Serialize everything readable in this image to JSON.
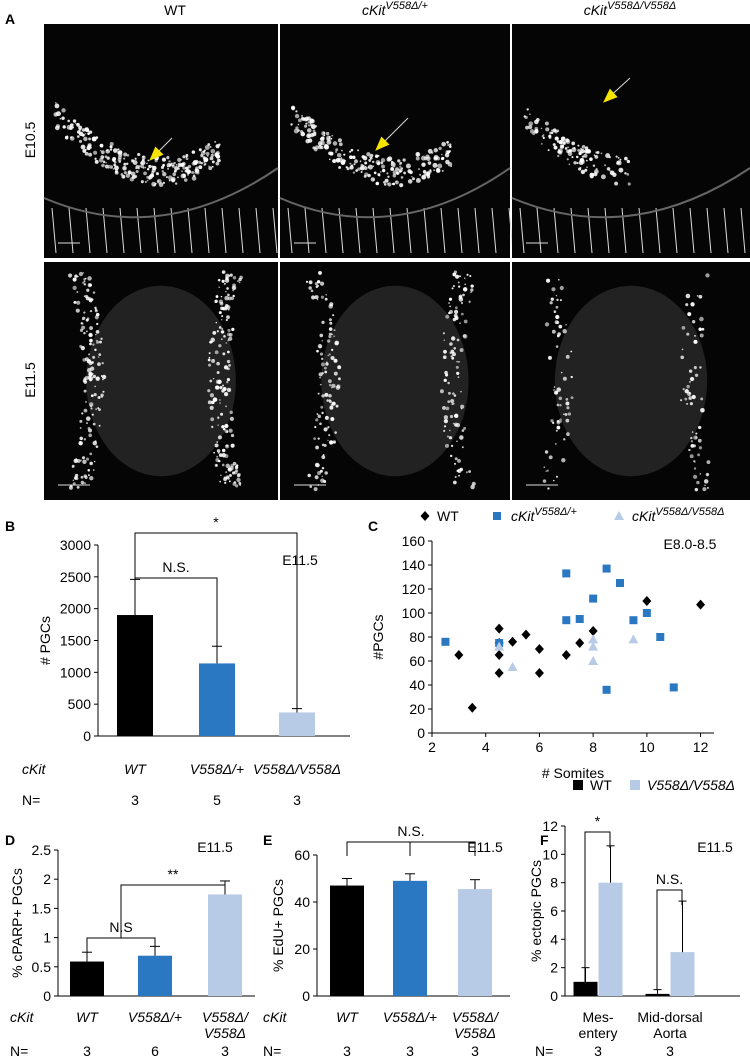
{
  "figure": {
    "panel_a": {
      "label": "A",
      "columns": [
        {
          "text": "WT"
        },
        {
          "text": "cKit",
          "sup": "V558Δ/+"
        },
        {
          "text": "cKit",
          "sup": "V558Δ/V558Δ"
        }
      ],
      "rows": [
        "E10.5",
        "E11.5"
      ]
    }
  },
  "chart_data": [
    {
      "type": "bar",
      "panel": "B",
      "ylabel": "# PGCs",
      "annotation": "E11.5",
      "row_label": "cKit",
      "categories": [
        "WT",
        "V558Δ/+",
        "V558Δ/V558Δ"
      ],
      "values": [
        1900,
        1140,
        370
      ],
      "errors": [
        560,
        270,
        60
      ],
      "colors": [
        "#000000",
        "#2a78c2",
        "#b8cbe6"
      ],
      "ylim": [
        0,
        3000
      ],
      "yticks": [
        0,
        500,
        1000,
        1500,
        2000,
        2500,
        3000
      ],
      "significance": [
        "N.S.",
        "*"
      ],
      "n_label": "N=",
      "n": [
        3,
        5,
        3
      ]
    },
    {
      "type": "scatter",
      "panel": "C",
      "ylabel": "#PGCs",
      "xlabel": "# Somites",
      "annotation": "E8.0-8.5",
      "xlim": [
        2,
        12.5
      ],
      "xticks": [
        2,
        4,
        6,
        8,
        10,
        12
      ],
      "ylim": [
        0,
        160
      ],
      "yticks": [
        0,
        20,
        40,
        60,
        80,
        100,
        120,
        140,
        160
      ],
      "series": [
        {
          "name": "WT",
          "color": "#000000",
          "marker": "diamond",
          "x": [
            3,
            3.5,
            4.5,
            4.5,
            4.5,
            4.5,
            5,
            5.5,
            6,
            6,
            7,
            7.5,
            8,
            10,
            12
          ],
          "values": [
            65,
            21,
            87,
            75,
            65,
            50,
            76,
            82,
            70,
            50,
            65,
            75,
            85,
            110,
            107
          ]
        },
        {
          "name": "cKit",
          "name_sup": "V558Δ/+",
          "color": "#2a78c2",
          "marker": "square",
          "x": [
            2.5,
            4.5,
            7,
            7,
            7.5,
            8,
            8.5,
            8.5,
            9,
            9.5,
            10,
            10.5,
            11
          ],
          "values": [
            76,
            75,
            133,
            94,
            95,
            112,
            137,
            36,
            125,
            94,
            100,
            80,
            38
          ]
        },
        {
          "name": "cKit",
          "name_sup": "V558Δ/V558Δ",
          "color": "#b8cbe6",
          "marker": "triangle",
          "x": [
            4.5,
            5,
            8,
            8,
            8,
            9.5
          ],
          "values": [
            72,
            55,
            78,
            72,
            60,
            78
          ]
        }
      ]
    },
    {
      "type": "bar",
      "panel": "D",
      "ylabel": "% cPARP+ PGCs",
      "annotation": "E11.5",
      "row_label": "cKit",
      "categories": [
        [
          "WT"
        ],
        [
          "V558Δ/+"
        ],
        [
          "V558Δ/",
          "V558Δ"
        ]
      ],
      "values": [
        0.59,
        0.69,
        1.74
      ],
      "errors": [
        0.16,
        0.16,
        0.23
      ],
      "colors": [
        "#000000",
        "#2a78c2",
        "#b8cbe6"
      ],
      "ylim": [
        0,
        2.5
      ],
      "yticks": [
        0,
        0.5,
        1,
        1.5,
        2,
        2.5
      ],
      "significance": [
        "N.S",
        "**"
      ],
      "n_label": "N=",
      "n": [
        3,
        6,
        3
      ]
    },
    {
      "type": "bar",
      "panel": "E",
      "ylabel": "% EdU+ PGCs",
      "annotation": "E11.5",
      "row_label": "cKit",
      "categories": [
        [
          "WT"
        ],
        [
          "V558Δ/+"
        ],
        [
          "V558Δ/",
          "V558Δ"
        ]
      ],
      "values": [
        47,
        49,
        45.5
      ],
      "errors": [
        3,
        3,
        4
      ],
      "colors": [
        "#000000",
        "#2a78c2",
        "#b8cbe6"
      ],
      "ylim": [
        0,
        60
      ],
      "yticks": [
        0,
        20,
        40,
        60
      ],
      "significance": [
        "N.S."
      ],
      "n_label": "N=",
      "n": [
        3,
        3,
        3
      ]
    },
    {
      "type": "grouped_bar",
      "panel": "F",
      "ylabel": "% ectopic PGCs",
      "annotation": "E11.5",
      "categories": [
        [
          "Mes-",
          "entery"
        ],
        [
          "Mid-dorsal",
          "Aorta"
        ]
      ],
      "series": [
        {
          "name": "WT",
          "color": "#000000",
          "values": [
            1.0,
            0.15
          ],
          "errors": [
            1.0,
            0.3
          ]
        },
        {
          "name": "V558Δ/V558Δ",
          "color": "#b8cbe6",
          "values": [
            8.0,
            3.1
          ],
          "errors": [
            2.6,
            3.6
          ]
        }
      ],
      "ylim": [
        0,
        12
      ],
      "yticks": [
        0,
        2,
        4,
        6,
        8,
        10,
        12
      ],
      "significance": [
        "*",
        "N.S."
      ],
      "n_label": "N=",
      "n": [
        3,
        3
      ]
    }
  ]
}
